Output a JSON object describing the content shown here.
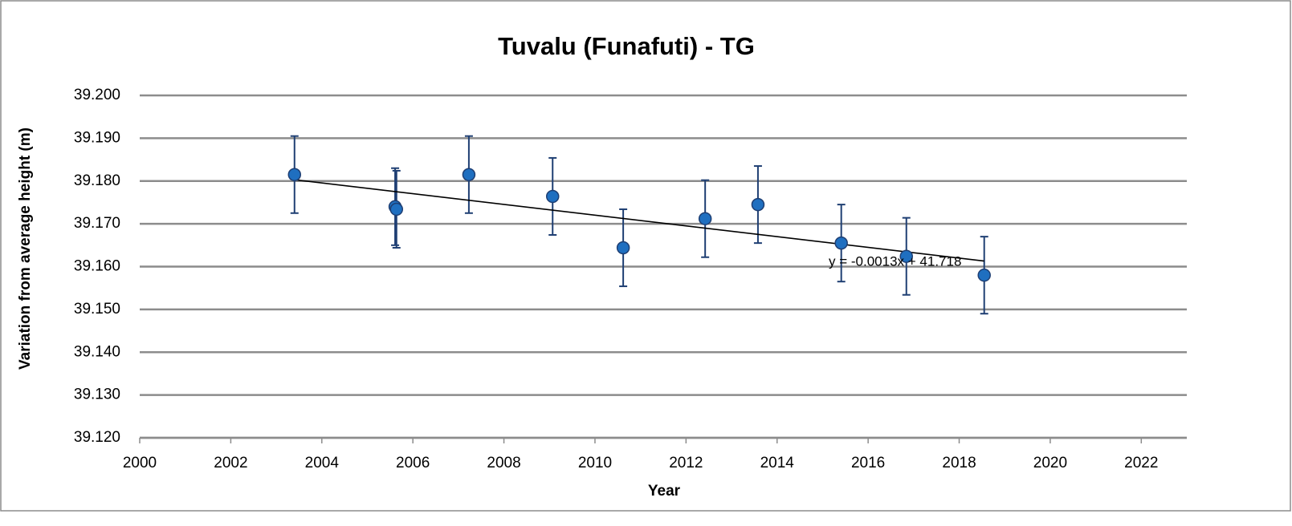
{
  "chart_data": {
    "type": "scatter",
    "title": "Tuvalu (Funafuti) - TG",
    "x_label": "Year",
    "y_label": "Variation from average height (m)",
    "xlim": [
      2000,
      2023
    ],
    "xticks": [
      2000,
      2002,
      2004,
      2006,
      2008,
      2010,
      2012,
      2014,
      2016,
      2018,
      2020,
      2022
    ],
    "ylim": [
      39.12,
      39.2
    ],
    "yticks": [
      {
        "value": 39.12,
        "label": "39.120"
      },
      {
        "value": 39.13,
        "label": "39.130"
      },
      {
        "value": 39.14,
        "label": "39.140"
      },
      {
        "value": 39.15,
        "label": "39.150"
      },
      {
        "value": 39.16,
        "label": "39.160"
      },
      {
        "value": 39.17,
        "label": "39.170"
      },
      {
        "value": 39.18,
        "label": "39.180"
      },
      {
        "value": 39.19,
        "label": "39.190"
      },
      {
        "value": 39.2,
        "label": "39.200"
      }
    ],
    "grid": true,
    "series": [
      {
        "color": "#1f6fc0",
        "error_color": "#1f3f73",
        "x": [
          2003.4,
          2005.61,
          2005.64,
          2007.23,
          2009.07,
          2010.62,
          2012.42,
          2013.58,
          2015.41,
          2016.84,
          2018.55
        ],
        "values": [
          39.1815,
          39.174,
          39.1734,
          39.1815,
          39.1764,
          39.1644,
          39.1712,
          39.1745,
          39.1655,
          39.1624,
          39.158
        ],
        "errors": [
          0.009,
          0.009,
          0.009,
          0.009,
          0.009,
          0.009,
          0.009,
          0.009,
          0.009,
          0.009,
          0.009
        ]
      }
    ],
    "trendline": {
      "label": "y = -0.0013x + 41.718",
      "color": "#000000",
      "x": [
        2003.4,
        2018.55
      ],
      "values": [
        39.1803,
        39.1613
      ]
    }
  }
}
